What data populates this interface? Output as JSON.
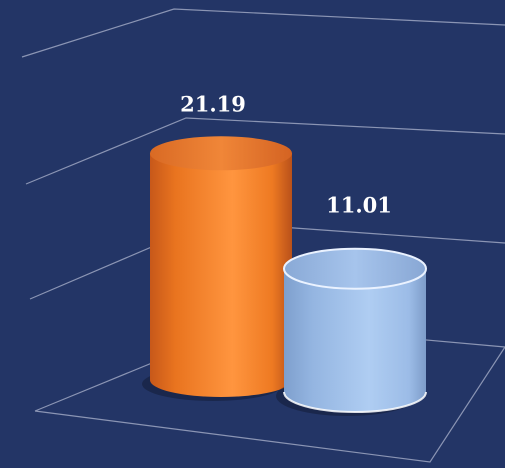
{
  "chart_data": {
    "type": "bar",
    "style": "3d-cylinder",
    "title": "",
    "xlabel": "",
    "ylabel": "",
    "categories": [
      "",
      ""
    ],
    "values": [
      21.19,
      11.01
    ],
    "data_labels": [
      "21.19",
      "11.01"
    ],
    "ylim": [
      0,
      25
    ],
    "grid": true,
    "legend": "none",
    "colors": {
      "background": "#233566",
      "gridline": "#8b95b4",
      "bar_1": "#f07f2a",
      "bar_2": "#9bbce6"
    }
  }
}
